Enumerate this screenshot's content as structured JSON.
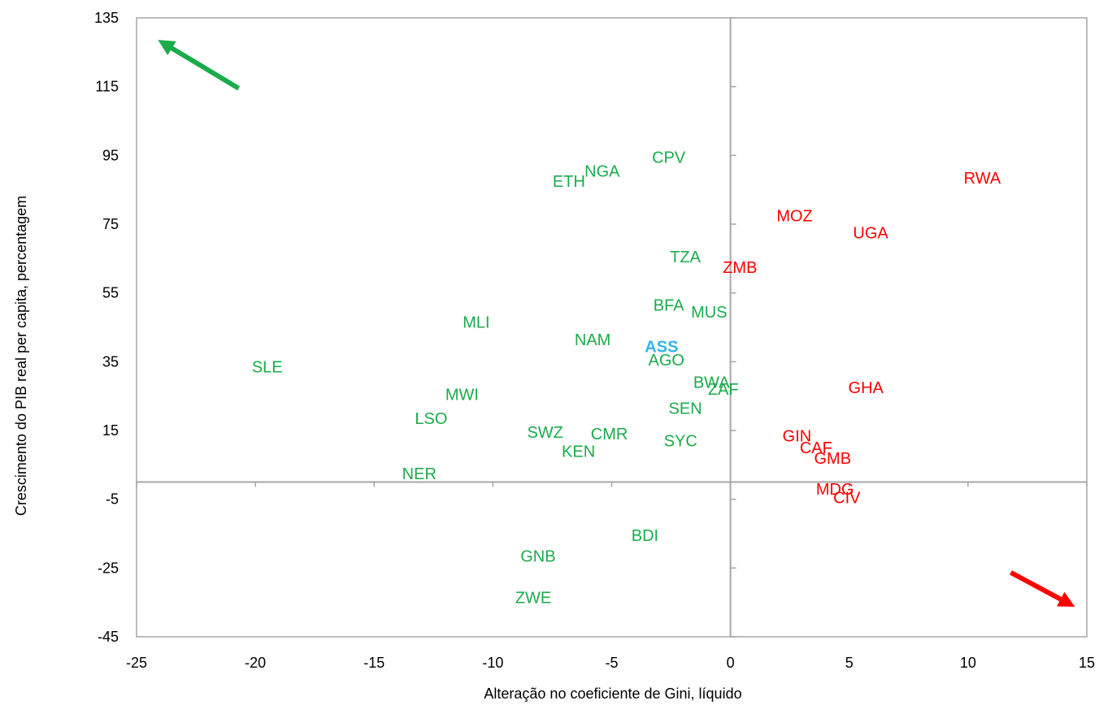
{
  "chart_data": {
    "type": "scatter",
    "title": "",
    "xlabel": "Alteração no coeficiente de Gini, líquido",
    "ylabel": "Crescimento do PIB real per capita, percentagem",
    "xlim": [
      -25,
      15
    ],
    "ylim": [
      -45,
      135
    ],
    "xticks": [
      "-25",
      "-20",
      "-15",
      "-10",
      "-5",
      "0",
      "5",
      "10",
      "15"
    ],
    "yticks": [
      "135",
      "115",
      "95",
      "75",
      "55",
      "35",
      "15",
      "-5",
      "-25",
      "-45"
    ],
    "grid": false,
    "legend": "none",
    "colors": {
      "improving": "#1aab4b",
      "worsening": "#ff0000",
      "aggregate": "#33b5e5",
      "axis": "#a6a6a6"
    },
    "arrows": [
      {
        "name": "up-left-arrow",
        "color": "#1aab4b",
        "from": [
          -20.7,
          114.5
        ],
        "to": [
          -24.1,
          128.6
        ]
      },
      {
        "name": "down-right-arrow",
        "color": "#ff0000",
        "from": [
          11.8,
          -26.3
        ],
        "to": [
          14.5,
          -36.3
        ]
      }
    ],
    "points": [
      {
        "label": "SLE",
        "x": -19.5,
        "y": 33.5,
        "group": "improving"
      },
      {
        "label": "MLI",
        "x": -10.7,
        "y": 46.5,
        "group": "improving"
      },
      {
        "label": "MWI",
        "x": -11.3,
        "y": 25.5,
        "group": "improving"
      },
      {
        "label": "LSO",
        "x": -12.6,
        "y": 18.5,
        "group": "improving"
      },
      {
        "label": "NER",
        "x": -13.1,
        "y": 2.5,
        "group": "improving"
      },
      {
        "label": "SWZ",
        "x": -7.8,
        "y": 14.5,
        "group": "improving"
      },
      {
        "label": "CMR",
        "x": -5.1,
        "y": 14,
        "group": "improving"
      },
      {
        "label": "KEN",
        "x": -6.4,
        "y": 9,
        "group": "improving"
      },
      {
        "label": "NAM",
        "x": -5.8,
        "y": 41.5,
        "group": "improving"
      },
      {
        "label": "ETH",
        "x": -6.8,
        "y": 87.5,
        "group": "improving"
      },
      {
        "label": "NGA",
        "x": -5.4,
        "y": 90.5,
        "group": "improving"
      },
      {
        "label": "CPV",
        "x": -2.6,
        "y": 94.5,
        "group": "improving"
      },
      {
        "label": "TZA",
        "x": -1.9,
        "y": 65.5,
        "group": "improving"
      },
      {
        "label": "BFA",
        "x": -2.6,
        "y": 51.5,
        "group": "improving"
      },
      {
        "label": "MUS",
        "x": -0.9,
        "y": 49.5,
        "group": "improving"
      },
      {
        "label": "AGO",
        "x": -2.7,
        "y": 35.5,
        "group": "improving"
      },
      {
        "label": "BWA",
        "x": -0.8,
        "y": 29,
        "group": "improving"
      },
      {
        "label": "ZAF",
        "x": -0.3,
        "y": 27,
        "group": "improving"
      },
      {
        "label": "SEN",
        "x": -1.9,
        "y": 21.5,
        "group": "improving"
      },
      {
        "label": "SYC",
        "x": -2.1,
        "y": 12,
        "group": "improving"
      },
      {
        "label": "BDI",
        "x": -3.6,
        "y": -15.5,
        "group": "improving"
      },
      {
        "label": "GNB",
        "x": -8.1,
        "y": -21.5,
        "group": "improving"
      },
      {
        "label": "ZWE",
        "x": -8.3,
        "y": -33.5,
        "group": "improving"
      },
      {
        "label": "RWA",
        "x": 10.6,
        "y": 88.5,
        "group": "worsening"
      },
      {
        "label": "MOZ",
        "x": 2.7,
        "y": 77.5,
        "group": "worsening"
      },
      {
        "label": "UGA",
        "x": 5.9,
        "y": 72.5,
        "group": "worsening"
      },
      {
        "label": "ZMB",
        "x": 0.4,
        "y": 62.5,
        "group": "worsening"
      },
      {
        "label": "GHA",
        "x": 5.7,
        "y": 27.5,
        "group": "worsening"
      },
      {
        "label": "GIN",
        "x": 2.8,
        "y": 13.5,
        "group": "worsening"
      },
      {
        "label": "CAF",
        "x": 3.6,
        "y": 10,
        "group": "worsening"
      },
      {
        "label": "GMB",
        "x": 4.3,
        "y": 7,
        "group": "worsening"
      },
      {
        "label": "MDG",
        "x": 4.4,
        "y": -2,
        "group": "worsening"
      },
      {
        "label": "CIV",
        "x": 4.9,
        "y": -4.5,
        "group": "worsening"
      },
      {
        "label": "ASS",
        "x": -2.9,
        "y": 39.5,
        "group": "aggregate"
      }
    ]
  }
}
